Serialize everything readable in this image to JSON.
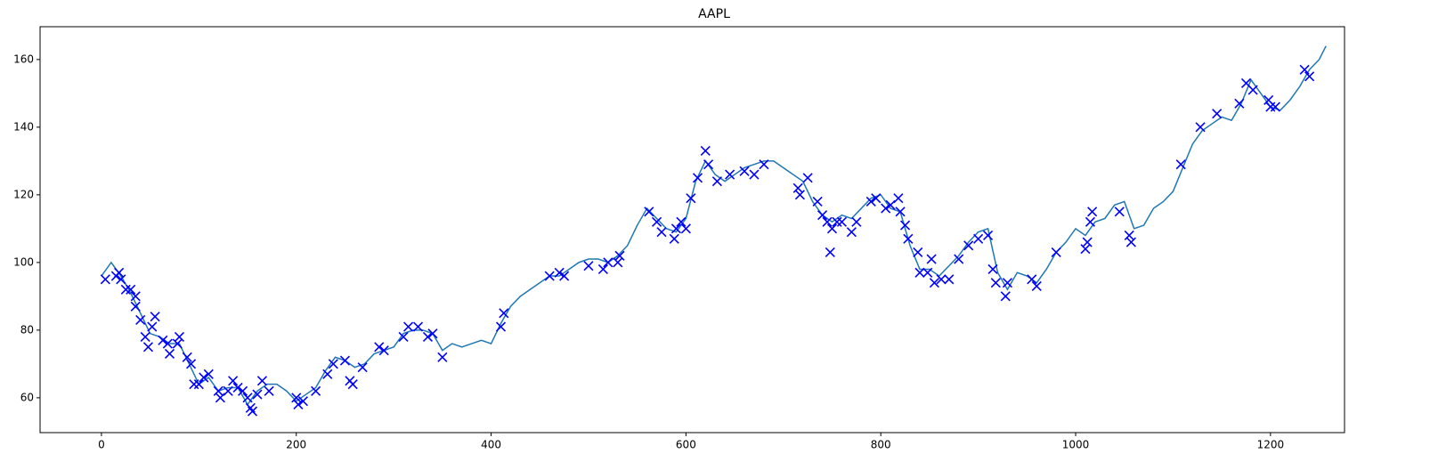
{
  "chart_data": {
    "type": "line",
    "title": "AAPL",
    "xlim": [
      -63,
      1276
    ],
    "ylim": [
      49.7,
      169.7
    ],
    "xticks": [
      0,
      200,
      400,
      600,
      800,
      1000,
      1200
    ],
    "yticks": [
      60,
      80,
      100,
      120,
      140,
      160
    ],
    "grid": false,
    "series": [
      {
        "type": "line",
        "color": "#1f77b4",
        "x": [
          0,
          10,
          20,
          30,
          40,
          50,
          60,
          70,
          80,
          90,
          100,
          110,
          120,
          130,
          140,
          150,
          160,
          170,
          180,
          190,
          200,
          210,
          220,
          230,
          240,
          250,
          260,
          270,
          280,
          290,
          300,
          310,
          320,
          330,
          340,
          350,
          360,
          370,
          380,
          390,
          400,
          410,
          420,
          430,
          440,
          450,
          460,
          470,
          480,
          490,
          500,
          510,
          520,
          530,
          540,
          550,
          560,
          570,
          580,
          590,
          600,
          610,
          620,
          630,
          640,
          650,
          660,
          670,
          680,
          690,
          700,
          710,
          720,
          730,
          740,
          750,
          760,
          770,
          780,
          790,
          800,
          810,
          820,
          830,
          840,
          850,
          860,
          870,
          880,
          890,
          900,
          910,
          920,
          930,
          940,
          950,
          960,
          970,
          980,
          990,
          1000,
          1010,
          1020,
          1030,
          1040,
          1050,
          1060,
          1070,
          1080,
          1090,
          1100,
          1110,
          1120,
          1130,
          1140,
          1150,
          1160,
          1170,
          1180,
          1190,
          1200,
          1210,
          1220,
          1230,
          1240,
          1250,
          1257
        ],
        "values": [
          96,
          100,
          96,
          91,
          85,
          79,
          78,
          76,
          76,
          70,
          64,
          66,
          62,
          63,
          63,
          58,
          62,
          64,
          64,
          62,
          59,
          61,
          63,
          68,
          72,
          71,
          69,
          70,
          73,
          74,
          75,
          79,
          80,
          80,
          79,
          74,
          76,
          75,
          76,
          77,
          76,
          82,
          87,
          90,
          92,
          94,
          96,
          96,
          98,
          100,
          101,
          101,
          100,
          102,
          105,
          111,
          116,
          113,
          110,
          109,
          113,
          124,
          130,
          126,
          124,
          126,
          128,
          129,
          130,
          130,
          128,
          126,
          124,
          118,
          114,
          112,
          114,
          113,
          116,
          119,
          120,
          116,
          115,
          105,
          98,
          98,
          96,
          99,
          102,
          106,
          109,
          110,
          97,
          92,
          97,
          96,
          94,
          98,
          103,
          106,
          110,
          108,
          112,
          113,
          117,
          118,
          110,
          111,
          116,
          118,
          121,
          128,
          135,
          139,
          141,
          143,
          142,
          147,
          154,
          150,
          146,
          145,
          148,
          152,
          157,
          160,
          164
        ]
      },
      {
        "type": "scatter",
        "marker": "x",
        "color": "#0000ff",
        "x": [
          4,
          15,
          18,
          20,
          25,
          30,
          35,
          35,
          40,
          45,
          48,
          52,
          55,
          63,
          68,
          70,
          78,
          80,
          88,
          92,
          95,
          100,
          105,
          110,
          120,
          122,
          130,
          135,
          140,
          145,
          150,
          153,
          155,
          160,
          165,
          172,
          200,
          202,
          207,
          220,
          232,
          238,
          250,
          255,
          258,
          268,
          285,
          290,
          310,
          315,
          325,
          335,
          340,
          350,
          410,
          413,
          460,
          470,
          475,
          500,
          515,
          520,
          530,
          532,
          562,
          570,
          575,
          588,
          590,
          595,
          600,
          605,
          612,
          620,
          623,
          632,
          645,
          660,
          670,
          680,
          715,
          717,
          725,
          735,
          740,
          745,
          748,
          750,
          755,
          760,
          770,
          775,
          790,
          795,
          805,
          810,
          818,
          820,
          825,
          828,
          838,
          840,
          848,
          852,
          855,
          862,
          870,
          880,
          890,
          900,
          910,
          915,
          918,
          928,
          930,
          955,
          960,
          980,
          1010,
          1012,
          1015,
          1017,
          1045,
          1055,
          1057,
          1108,
          1128,
          1145,
          1168,
          1175,
          1182,
          1198,
          1200,
          1205,
          1235,
          1240
        ],
        "values": [
          95,
          96,
          97,
          95,
          92,
          92,
          90,
          87,
          83,
          78,
          75,
          81,
          84,
          77,
          76,
          73,
          76,
          78,
          72,
          70,
          64,
          64,
          66,
          67,
          62,
          60,
          62,
          65,
          63,
          62,
          60,
          57,
          56,
          61,
          65,
          62,
          60,
          58,
          59,
          62,
          67,
          70,
          71,
          65,
          64,
          69,
          75,
          74,
          78,
          81,
          81,
          78,
          79,
          72,
          81,
          85,
          96,
          97,
          96,
          99,
          98,
          100,
          100,
          102,
          115,
          112,
          109,
          107,
          110,
          112,
          110,
          119,
          125,
          133,
          129,
          124,
          126,
          127,
          126,
          129,
          122,
          120,
          125,
          118,
          114,
          112,
          103,
          110,
          112,
          112,
          109,
          112,
          118,
          119,
          116,
          117,
          119,
          115,
          111,
          107,
          103,
          97,
          97,
          101,
          94,
          95,
          95,
          101,
          105,
          107,
          108,
          98,
          94,
          90,
          94,
          95,
          93,
          103,
          104,
          106,
          112,
          115,
          115,
          108,
          106,
          129,
          140,
          144,
          147,
          153,
          151,
          148,
          146,
          146,
          157,
          155
        ]
      }
    ]
  }
}
